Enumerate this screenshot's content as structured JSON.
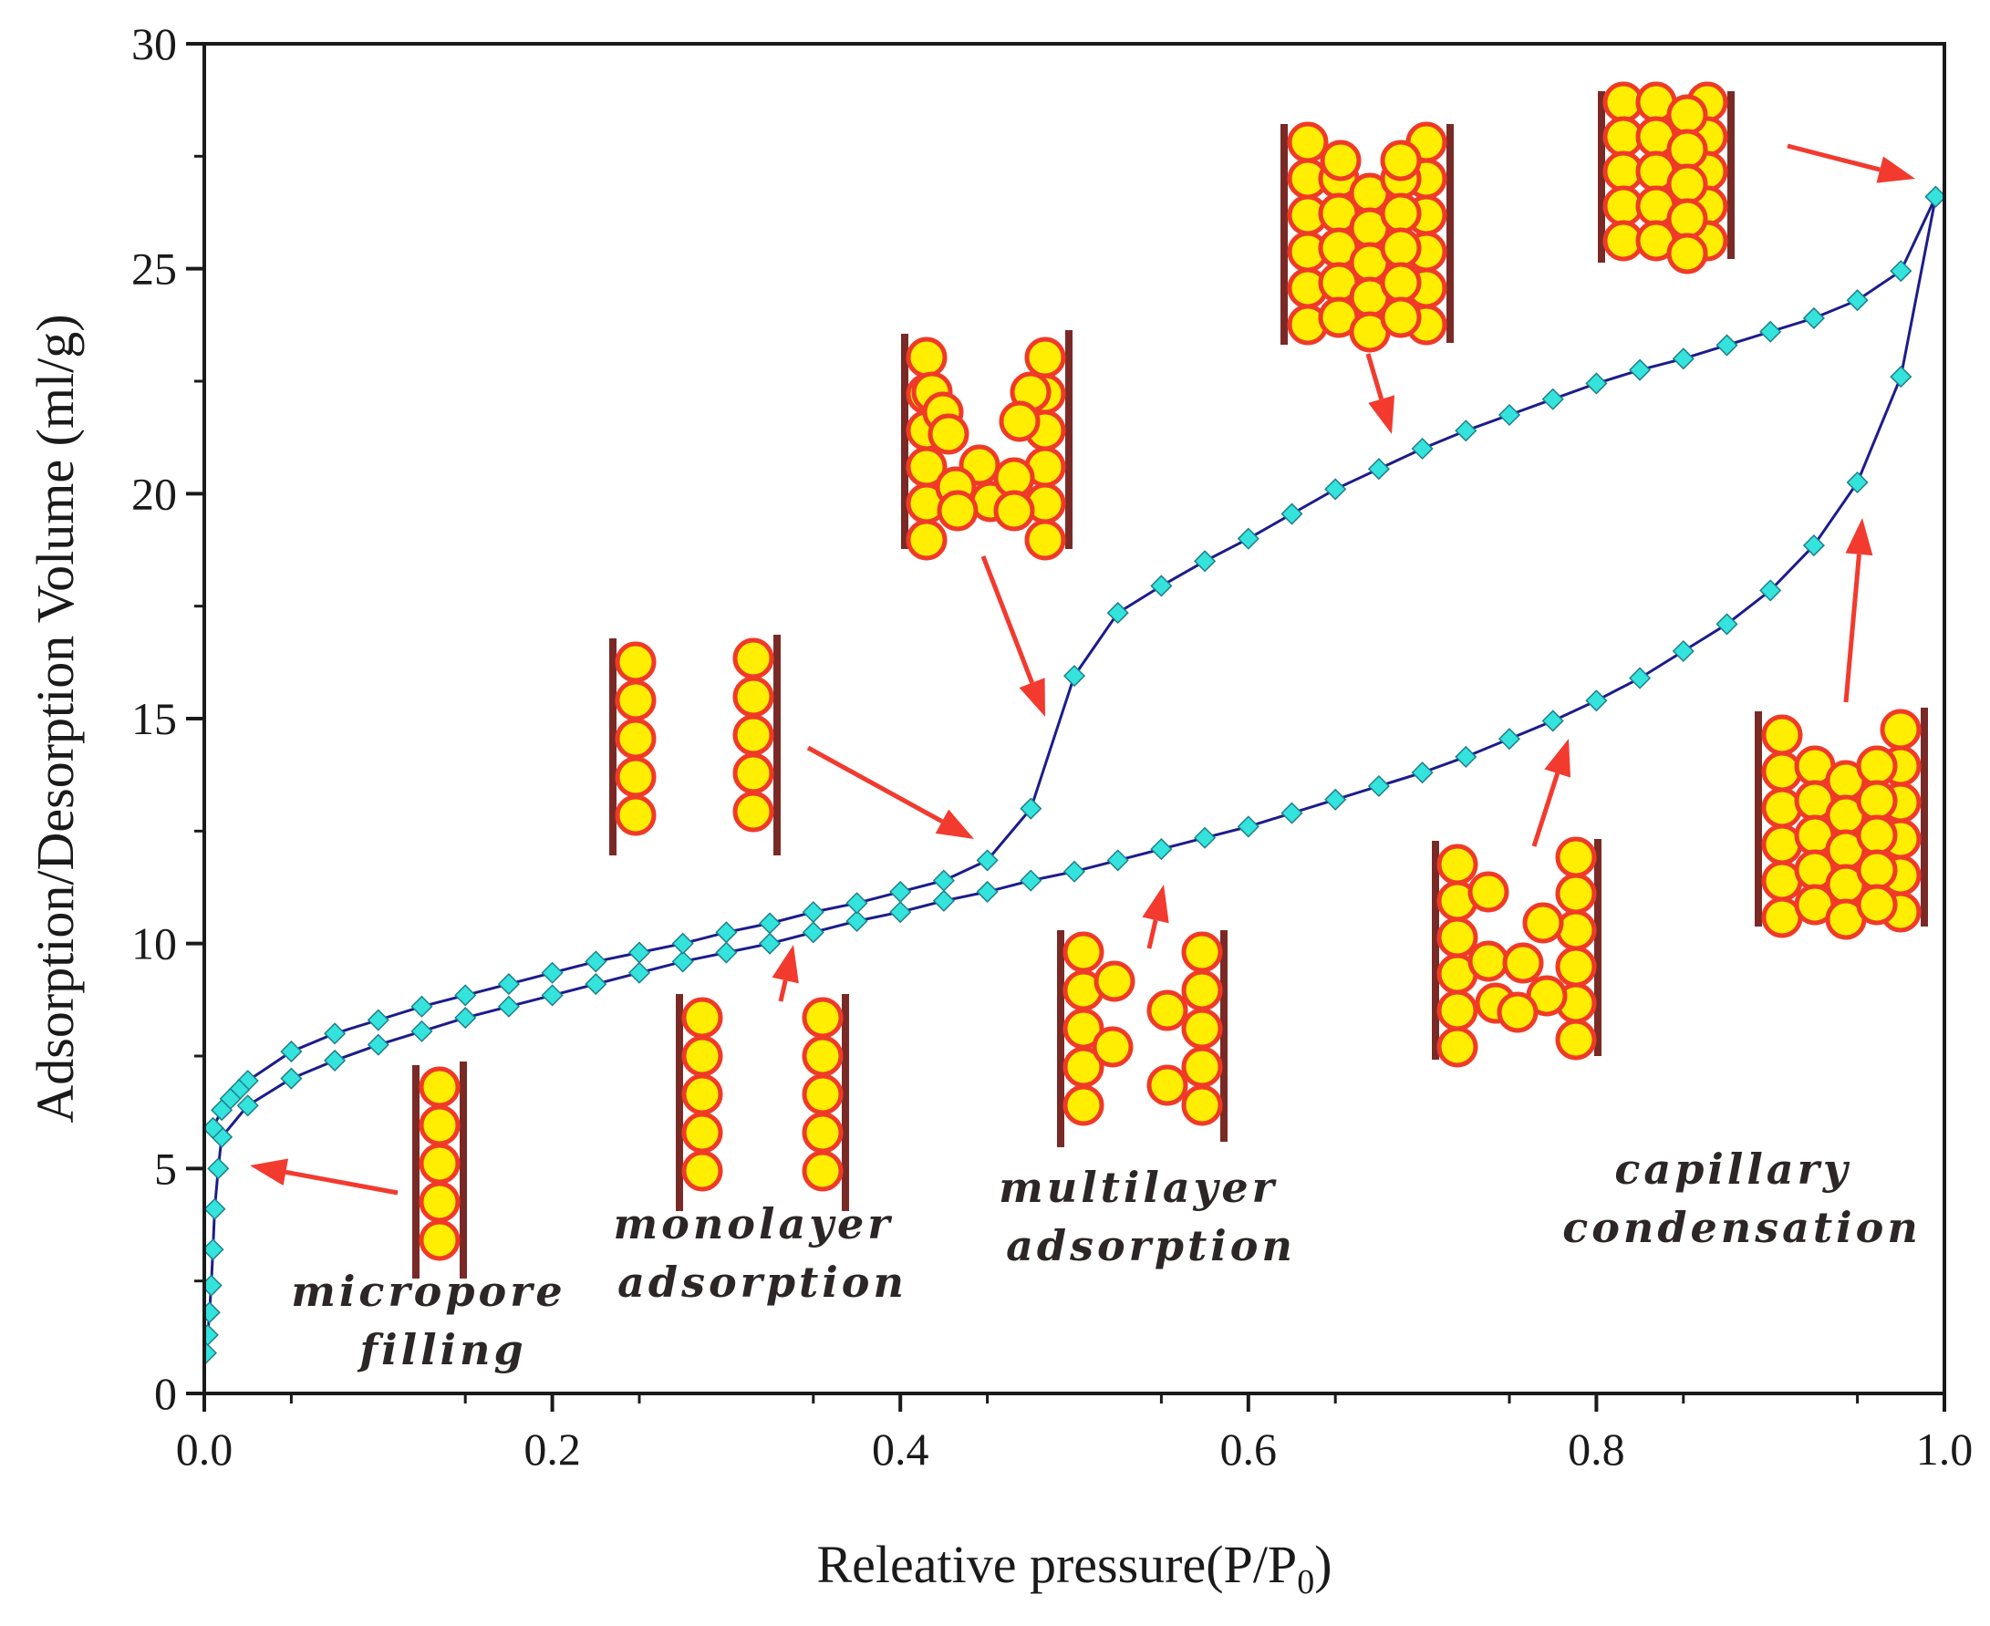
{
  "chart_data": {
    "type": "line",
    "xlabel": "Releative pressure(P/P0)",
    "xlabel_main": "Releative pressure(P/P",
    "xlabel_sub": "0",
    "xlabel_tail": ")",
    "ylabel": "Adsorption/Desorption Volume (ml/g)",
    "xlim": [
      0.0,
      1.0
    ],
    "ylim": [
      0,
      30
    ],
    "xticks": [
      "0.0",
      "0.2",
      "0.4",
      "0.6",
      "0.8",
      "1.0"
    ],
    "xtick_values": [
      0.0,
      0.2,
      0.4,
      0.6,
      0.8,
      1.0
    ],
    "yticks": [
      "0",
      "5",
      "10",
      "15",
      "20",
      "25",
      "30"
    ],
    "ytick_values": [
      0,
      5,
      10,
      15,
      20,
      25,
      30
    ],
    "grid": false,
    "series": [
      {
        "name": "Adsorption",
        "line_color": "#1c1c8c",
        "marker_color": "#33e3dc",
        "x": [
          0.001,
          0.002,
          0.003,
          0.004,
          0.005,
          0.006,
          0.008,
          0.01,
          0.025,
          0.05,
          0.075,
          0.1,
          0.125,
          0.15,
          0.175,
          0.2,
          0.225,
          0.25,
          0.275,
          0.3,
          0.325,
          0.35,
          0.375,
          0.4,
          0.425,
          0.45,
          0.475,
          0.5,
          0.525,
          0.55,
          0.575,
          0.6,
          0.625,
          0.65,
          0.675,
          0.7,
          0.725,
          0.75,
          0.775,
          0.8,
          0.825,
          0.85,
          0.875,
          0.9,
          0.925,
          0.95,
          0.975,
          0.995
        ],
        "y": [
          0.9,
          1.3,
          1.8,
          2.4,
          3.2,
          4.1,
          5.0,
          5.7,
          6.4,
          7.0,
          7.4,
          7.75,
          8.05,
          8.35,
          8.6,
          8.85,
          9.1,
          9.35,
          9.6,
          9.8,
          10.0,
          10.25,
          10.5,
          10.7,
          10.95,
          11.15,
          11.4,
          11.6,
          11.85,
          12.1,
          12.35,
          12.6,
          12.9,
          13.2,
          13.5,
          13.8,
          14.15,
          14.55,
          14.95,
          15.4,
          15.9,
          16.5,
          17.1,
          17.85,
          18.85,
          20.25,
          22.6,
          26.6
        ]
      },
      {
        "name": "Desorption",
        "line_color": "#1c1c8c",
        "marker_color": "#33e3dc",
        "x": [
          0.995,
          0.975,
          0.95,
          0.925,
          0.9,
          0.875,
          0.85,
          0.825,
          0.8,
          0.775,
          0.75,
          0.725,
          0.7,
          0.675,
          0.65,
          0.625,
          0.6,
          0.575,
          0.55,
          0.525,
          0.5,
          0.475,
          0.45,
          0.425,
          0.4,
          0.375,
          0.35,
          0.325,
          0.3,
          0.275,
          0.25,
          0.225,
          0.2,
          0.175,
          0.15,
          0.125,
          0.1,
          0.075,
          0.05,
          0.025,
          0.02,
          0.015,
          0.01,
          0.005
        ],
        "y": [
          26.6,
          24.95,
          24.3,
          23.9,
          23.6,
          23.3,
          23.0,
          22.75,
          22.45,
          22.1,
          21.75,
          21.4,
          21.0,
          20.55,
          20.1,
          19.55,
          19.0,
          18.5,
          17.95,
          17.35,
          15.95,
          13.0,
          11.85,
          11.4,
          11.15,
          10.9,
          10.7,
          10.45,
          10.25,
          10.0,
          9.8,
          9.6,
          9.35,
          9.1,
          8.85,
          8.6,
          8.3,
          8.0,
          7.6,
          6.95,
          6.75,
          6.55,
          6.3,
          5.9
        ]
      }
    ],
    "annotations": [
      {
        "id": "micropore",
        "lines": [
          "micropore",
          "filling"
        ]
      },
      {
        "id": "monolayer",
        "lines": [
          "monolayer",
          "adsorption"
        ]
      },
      {
        "id": "multilayer",
        "lines": [
          "multilayer",
          "adsorption"
        ]
      },
      {
        "id": "capillary",
        "lines": [
          "capillary",
          "condensation"
        ]
      }
    ]
  },
  "colors": {
    "axis": "#1a1a1a",
    "curve": "#1c1c8c",
    "marker": "#33e3dc",
    "molecule_fill": "#ffee00",
    "molecule_stroke": "#f03a28",
    "pore_wall": "#7a2a26",
    "arrow": "#f23a2e"
  }
}
